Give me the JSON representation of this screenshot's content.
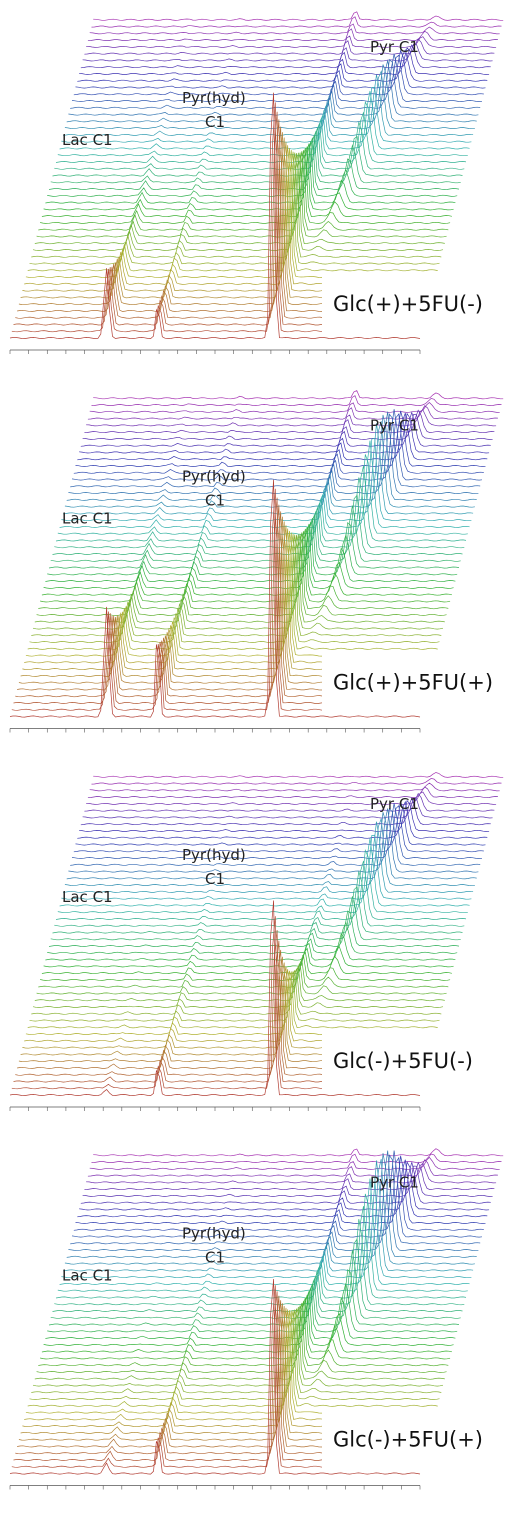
{
  "panels": [
    {
      "labels": [
        "Lac C1",
        "Pyr(hyd)",
        "C1",
        "Pyr C1"
      ],
      "condition": "Glc(+)+5FU(-)"
    },
    {
      "labels": [
        "Lac C1",
        "Pyr(hyd)",
        "C1",
        "Pyr C1"
      ],
      "condition": "Glc(+)+5FU(+)"
    },
    {
      "labels": [
        "Lac C1",
        "Pyr(hyd)",
        "C1",
        "Pyr C1"
      ],
      "condition": "Glc(-)+5FU(-)"
    },
    {
      "labels": [
        "Lac C1",
        "Pyr(hyd)",
        "C1",
        "Pyr C1"
      ],
      "condition": "Glc(-)+5FU(+)"
    }
  ]
}
